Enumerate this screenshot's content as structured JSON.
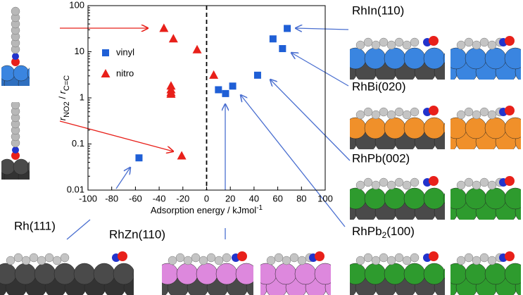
{
  "chart_data": {
    "type": "scatter",
    "xlabel_parts": [
      "Adsorption energy / kJmol",
      "-1"
    ],
    "ylabel_parts": [
      "r",
      "NO2",
      " / ",
      "r",
      "C=C"
    ],
    "xlim": [
      -100,
      100
    ],
    "xticks": [
      -100,
      -80,
      -60,
      -40,
      -20,
      0,
      20,
      40,
      60,
      80,
      100
    ],
    "ylim": [
      0.01,
      100
    ],
    "yticks": [
      0.01,
      0.1,
      1,
      10,
      100
    ],
    "log_y": true,
    "vline_x": 0,
    "legend": "upper left",
    "series": [
      {
        "name": "vinyl",
        "color": "#1f5fd6",
        "marker": "square",
        "x": [
          -57,
          10,
          16,
          22,
          43,
          56,
          64,
          68
        ],
        "values": [
          0.05,
          1.5,
          1.24,
          1.8,
          3.1,
          19,
          11.7,
          32
        ]
      },
      {
        "name": "nitro",
        "color": "#e8201a",
        "marker": "triangle",
        "x": [
          -36,
          -28,
          -8,
          6,
          -30,
          -30,
          -30,
          -30,
          -21
        ],
        "values": [
          32,
          19,
          11,
          3.1,
          1.8,
          1.5,
          1.3,
          1.2,
          0.055
        ]
      }
    ]
  },
  "labels": {
    "rhin": "RhIn(110)",
    "rhbi": "RhBi(020)",
    "rhpb": "RhPb(002)",
    "rhpb2_parts": [
      "RhPb",
      "2",
      "(100)"
    ],
    "rh111": "Rh(111)",
    "rhzn": "RhZn(110)"
  }
}
